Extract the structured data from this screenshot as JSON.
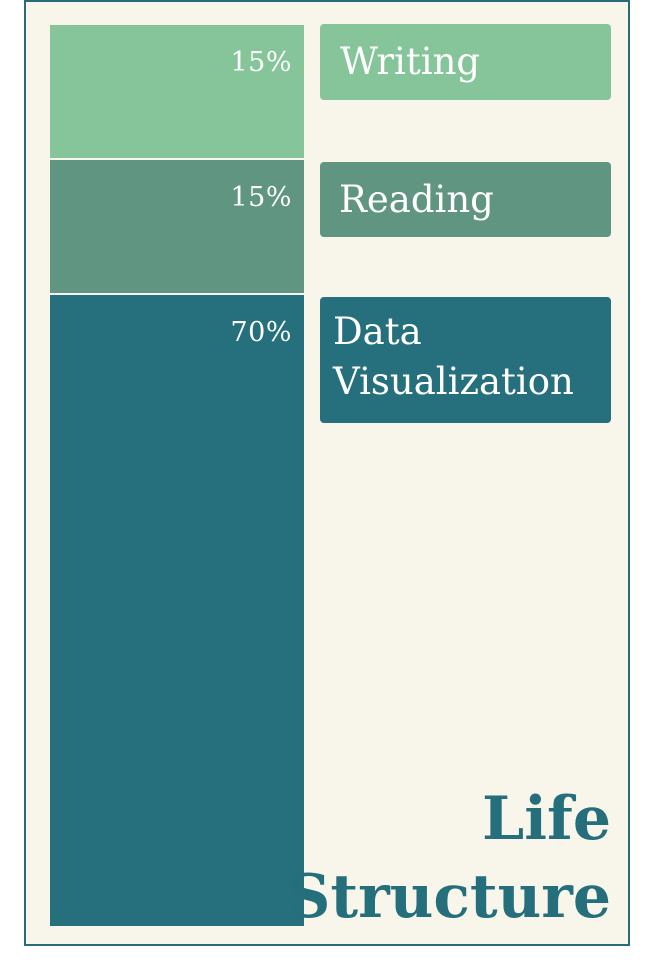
{
  "chart_data": {
    "type": "bar",
    "stacked": true,
    "title": "Life Structure",
    "series": [
      {
        "name": "Writing",
        "value": 15,
        "label": "15%",
        "color": "#86c49a"
      },
      {
        "name": "Reading",
        "value": 15,
        "label": "15%",
        "color": "#609582"
      },
      {
        "name": "Data Visualization",
        "value": 70,
        "label": "70%",
        "color": "#25707c"
      }
    ],
    "unit": "%",
    "legend_placement": "right",
    "grid": false
  },
  "colors": {
    "background": "#f8f6ea",
    "border": "#2a6b78",
    "title": "#256f7d"
  }
}
